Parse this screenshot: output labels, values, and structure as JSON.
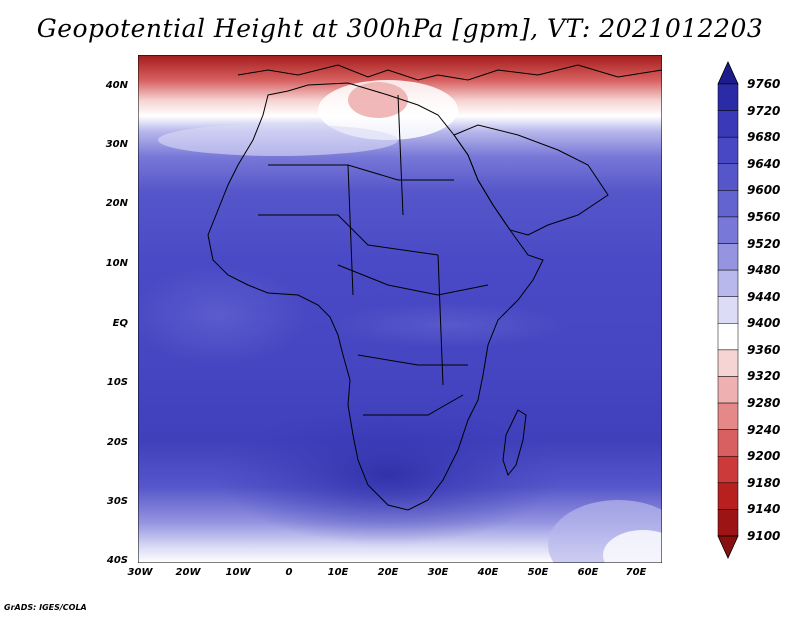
{
  "title": "Geopotential Height at 300hPa [gpm], VT: 2021012203",
  "credit": "GrADS: IGES/COLA",
  "map": {
    "variable": "Geopotential Height",
    "level_hpa": 300,
    "units": "gpm",
    "valid_time": "2021012203",
    "lon_labels": [
      "30W",
      "20W",
      "10W",
      "0",
      "10E",
      "20E",
      "30E",
      "40E",
      "50E",
      "60E",
      "70E"
    ],
    "lat_labels": [
      "40N",
      "30N",
      "20N",
      "10N",
      "EQ",
      "10S",
      "20S",
      "30S",
      "40S"
    ]
  },
  "colorbar": {
    "levels": [
      "9760",
      "9720",
      "9680",
      "9640",
      "9600",
      "9560",
      "9520",
      "9480",
      "9440",
      "9400",
      "9360",
      "9320",
      "9280",
      "9240",
      "9200",
      "9180",
      "9140",
      "9100"
    ],
    "colors": [
      "#1c1c8c",
      "#2b2ba8",
      "#3a3ab8",
      "#4848c4",
      "#5656ca",
      "#6464d0",
      "#7878d8",
      "#9494e0",
      "#b8b8ec",
      "#dcdcf6",
      "#ffffff",
      "#f6d4d4",
      "#eeb0b0",
      "#e48888",
      "#d86060",
      "#cc3a3a",
      "#b82020",
      "#9c1414",
      "#881010"
    ]
  }
}
